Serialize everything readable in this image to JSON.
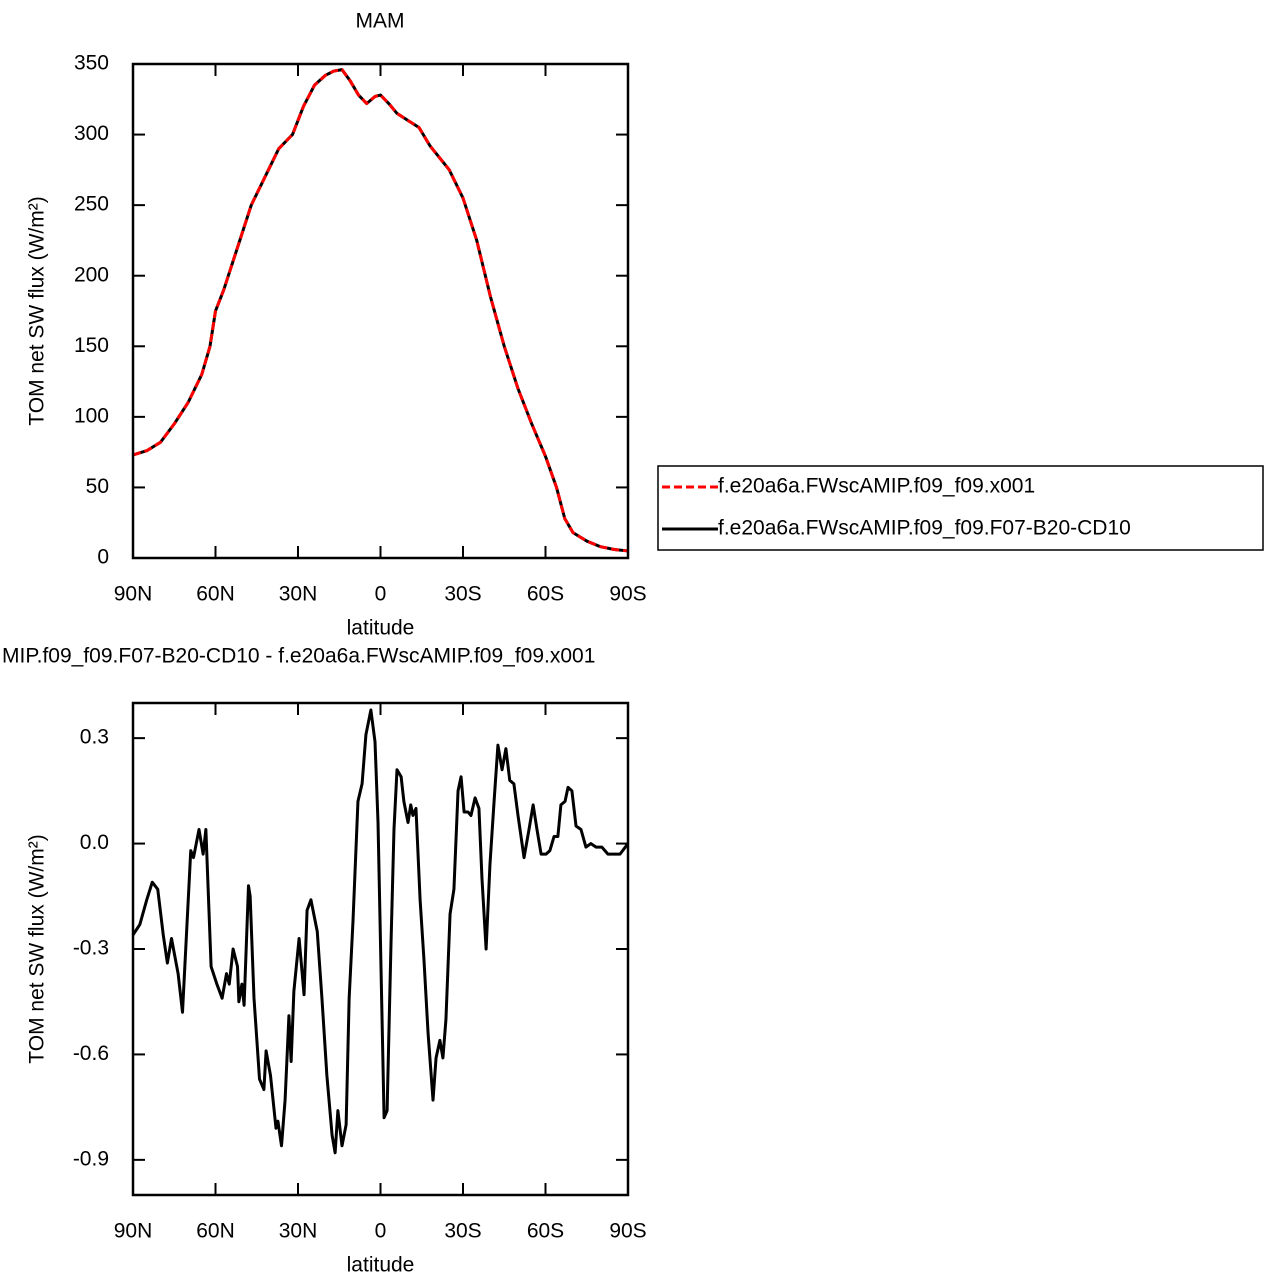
{
  "chart_data": [
    {
      "type": "line",
      "title": "MAM",
      "xlabel": "latitude",
      "ylabel": "TOM net SW flux (W/m²)",
      "xlim": [
        90,
        -90
      ],
      "xticks": [
        {
          "value": 90,
          "label": "90N"
        },
        {
          "value": 60,
          "label": "60N"
        },
        {
          "value": 30,
          "label": "30N"
        },
        0,
        {
          "value": -30,
          "label": "30S"
        },
        {
          "value": -60,
          "label": "60S"
        },
        {
          "value": -90,
          "label": "90S"
        }
      ],
      "ylim": [
        0,
        350
      ],
      "yticks": [
        0,
        50,
        100,
        150,
        200,
        250,
        300,
        350
      ],
      "legend": "outside-right",
      "x": [
        90,
        85,
        80,
        75,
        70,
        65,
        62,
        60,
        57,
        52,
        47,
        42,
        37,
        32,
        28,
        24,
        20,
        17,
        14,
        11,
        8,
        5,
        2,
        0,
        -3,
        -6,
        -10,
        -14,
        -18,
        -25,
        -30,
        -35,
        -40,
        -45,
        -50,
        -55,
        -60,
        -64,
        -67,
        -70,
        -75,
        -80,
        -85,
        -90
      ],
      "series": [
        {
          "name": "f.e20a6a.FWscAMIP.f09_f09.x001",
          "color": "#ff0000",
          "dashed": true,
          "values": [
            73,
            76,
            82,
            95,
            110,
            130,
            150,
            175,
            190,
            220,
            250,
            270,
            290,
            300,
            320,
            335,
            342,
            345,
            346,
            338,
            328,
            322,
            327,
            328,
            322,
            315,
            310,
            305,
            292,
            275,
            255,
            225,
            185,
            150,
            120,
            95,
            72,
            50,
            28,
            18,
            12,
            8,
            6,
            5
          ]
        },
        {
          "name": "f.e20a6a.FWscAMIP.f09_f09.F07-B20-CD10",
          "color": "#000000",
          "dashed": false,
          "values": [
            73,
            76,
            82,
            95,
            110,
            130,
            150,
            175,
            190,
            220,
            250,
            270,
            290,
            300,
            320,
            335,
            342,
            345,
            346,
            338,
            328,
            322,
            327,
            328,
            322,
            315,
            310,
            305,
            292,
            275,
            255,
            225,
            185,
            150,
            120,
            95,
            72,
            50,
            28,
            18,
            12,
            8,
            6,
            5
          ]
        }
      ]
    },
    {
      "type": "line",
      "title": "MIP.f09_f09.F07-B20-CD10 - f.e20a6a.FWscAMIP.f09_f09.x001",
      "xlabel": "latitude",
      "ylabel": "TOM net SW flux (W/m²)",
      "xlim": [
        90,
        -90
      ],
      "xticks": [
        {
          "value": 90,
          "label": "90N"
        },
        {
          "value": 60,
          "label": "60N"
        },
        {
          "value": 30,
          "label": "30N"
        },
        0,
        {
          "value": -30,
          "label": "30S"
        },
        {
          "value": -60,
          "label": "60S"
        },
        {
          "value": -90,
          "label": "90S"
        }
      ],
      "ylim": [
        -1.0,
        0.4
      ],
      "yticks": [
        -0.9,
        -0.6,
        -0.3,
        {
          "value": 0,
          "label": "0.0"
        },
        0.3
      ],
      "x": [
        90,
        87.5,
        85,
        83,
        81,
        79,
        77.5,
        76,
        73.6,
        72,
        69,
        68,
        66,
        64.5,
        63.5,
        61.6,
        59.5,
        57.6,
        56,
        55,
        53.6,
        52,
        51.5,
        50.4,
        49.6,
        48,
        47.4,
        46,
        44,
        42.4,
        41.6,
        40,
        38,
        37.3,
        36,
        34.7,
        33.3,
        32.5,
        31.5,
        29.6,
        27.8,
        26.7,
        25.3,
        23,
        21.3,
        19.5,
        17.6,
        16.5,
        15.5,
        14,
        12.5,
        11.4,
        10,
        8.2,
        6.7,
        5.3,
        3.5,
        2,
        0.9,
        -0.2,
        -1.3,
        -2.4,
        -3.8,
        -4.9,
        -6,
        -7.5,
        -8.5,
        -10,
        -11,
        -11.8,
        -12.9,
        -14.4,
        -15.8,
        -17.3,
        -19.1,
        -20.2,
        -21.6,
        -22.7,
        -23.8,
        -25.3,
        -26.7,
        -28.2,
        -29.3,
        -30.4,
        -31.8,
        -32.9,
        -34.4,
        -35.8,
        -36.9,
        -38.4,
        -39.8,
        -41.3,
        -42.7,
        -44.2,
        -45.6,
        -47,
        -48.5,
        -50,
        -52.2,
        -54,
        -55.5,
        -56.9,
        -58.4,
        -60.2,
        -61.6,
        -63.1,
        -64.5,
        -65.6,
        -67.1,
        -68.2,
        -69.6,
        -71.1,
        -72.9,
        -74.7,
        -76.5,
        -78.4,
        -80.5,
        -82.7,
        -84.9,
        -87.1,
        -90
      ],
      "series": [
        {
          "name": null,
          "color": "#000000",
          "dashed": false,
          "values": [
            -0.26,
            -0.23,
            -0.16,
            -0.11,
            -0.13,
            -0.26,
            -0.34,
            -0.27,
            -0.37,
            -0.48,
            -0.02,
            -0.04,
            0.04,
            -0.03,
            0.04,
            -0.35,
            -0.4,
            -0.44,
            -0.37,
            -0.4,
            -0.3,
            -0.35,
            -0.45,
            -0.4,
            -0.46,
            -0.12,
            -0.15,
            -0.44,
            -0.67,
            -0.7,
            -0.59,
            -0.66,
            -0.81,
            -0.79,
            -0.86,
            -0.73,
            -0.49,
            -0.62,
            -0.42,
            -0.27,
            -0.43,
            -0.19,
            -0.16,
            -0.25,
            -0.44,
            -0.66,
            -0.83,
            -0.88,
            -0.76,
            -0.86,
            -0.8,
            -0.44,
            -0.22,
            0.12,
            0.17,
            0.31,
            0.38,
            0.29,
            0.06,
            -0.36,
            -0.78,
            -0.76,
            -0.29,
            0.04,
            0.21,
            0.19,
            0.12,
            0.06,
            0.11,
            0.08,
            0.1,
            -0.16,
            -0.33,
            -0.54,
            -0.73,
            -0.61,
            -0.56,
            -0.61,
            -0.5,
            -0.2,
            -0.13,
            0.15,
            0.19,
            0.09,
            0.09,
            0.08,
            0.13,
            0.1,
            -0.1,
            -0.3,
            -0.06,
            0.12,
            0.28,
            0.21,
            0.27,
            0.18,
            0.17,
            0.08,
            -0.04,
            0.04,
            0.11,
            0.04,
            -0.03,
            -0.03,
            -0.02,
            0.02,
            0.02,
            0.11,
            0.12,
            0.16,
            0.15,
            0.05,
            0.04,
            -0.01,
            0.0,
            -0.01,
            -0.01,
            -0.03,
            -0.03,
            -0.03,
            0.0
          ]
        }
      ]
    }
  ]
}
